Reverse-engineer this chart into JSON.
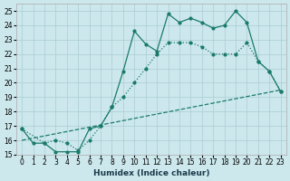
{
  "xlabel": "Humidex (Indice chaleur)",
  "ylabel": "",
  "bg_color": "#cce8ec",
  "grid_color": "#aaccd4",
  "line_color": "#1a7a6a",
  "xlim": [
    -0.5,
    23.5
  ],
  "ylim": [
    15,
    25.5
  ],
  "yticks": [
    15,
    16,
    17,
    18,
    19,
    20,
    21,
    22,
    23,
    24,
    25
  ],
  "xticks": [
    0,
    1,
    2,
    3,
    4,
    5,
    6,
    7,
    8,
    9,
    10,
    11,
    12,
    13,
    14,
    15,
    16,
    17,
    18,
    19,
    20,
    21,
    22,
    23
  ],
  "series": [
    {
      "x": [
        0,
        1,
        2,
        3,
        4,
        5,
        6,
        7,
        8,
        9,
        10,
        11,
        12,
        13,
        14,
        15,
        16,
        17,
        18,
        19,
        20,
        21,
        22,
        23
      ],
      "y": [
        16.8,
        15.8,
        15.8,
        15.2,
        15.2,
        15.2,
        16.8,
        17.0,
        18.3,
        20.8,
        23.6,
        22.7,
        22.2,
        24.8,
        24.2,
        24.5,
        24.2,
        23.8,
        24.0,
        25.0,
        24.2,
        21.5,
        20.8,
        19.4
      ]
    },
    {
      "x": [
        0,
        2,
        3,
        4,
        5,
        6,
        7,
        8,
        9,
        10,
        11,
        12,
        13,
        14,
        15,
        16,
        17,
        18,
        19,
        20,
        21,
        22,
        23
      ],
      "y": [
        16.8,
        15.8,
        16.0,
        15.8,
        15.3,
        16.0,
        17.0,
        18.3,
        19.0,
        20.0,
        21.0,
        22.0,
        22.8,
        22.8,
        22.8,
        22.5,
        22.0,
        22.0,
        22.0,
        22.8,
        21.5,
        20.8,
        19.4
      ]
    },
    {
      "x": [
        0,
        23
      ],
      "y": [
        16.0,
        19.5
      ]
    }
  ]
}
